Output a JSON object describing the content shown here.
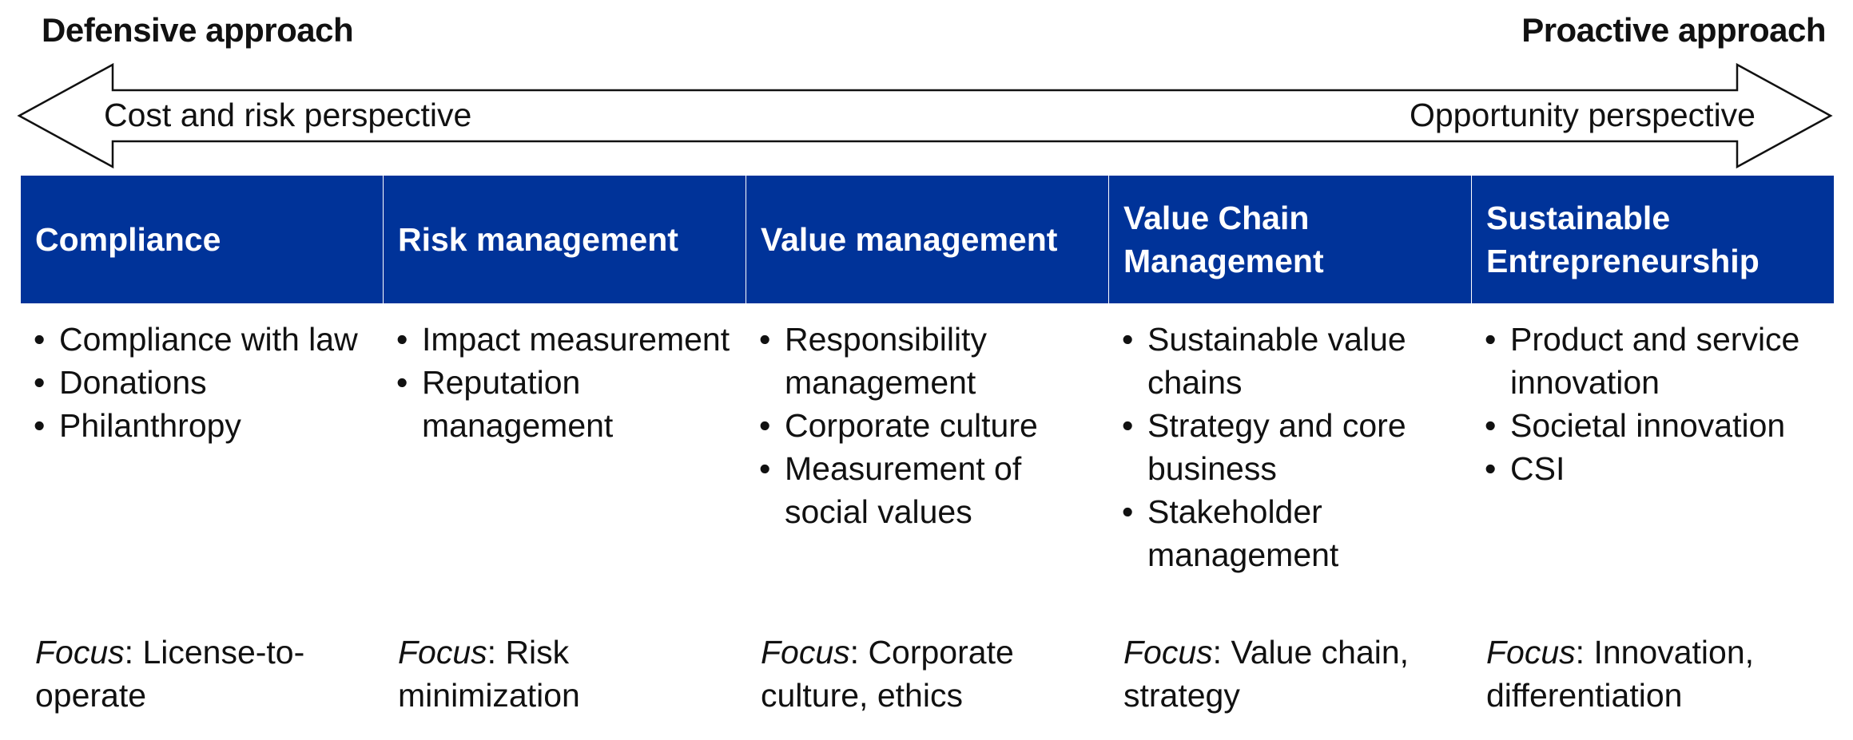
{
  "ends": {
    "left_title": "Defensive approach",
    "right_title": "Proactive approach"
  },
  "arrow": {
    "left_text": "Cost and risk perspective",
    "right_text": "Opportunity perspective"
  },
  "colors": {
    "header_bg": "#003399",
    "header_text": "#ffffff"
  },
  "columns": [
    {
      "title_lines": [
        "Compliance"
      ],
      "bullets": [
        "Compliance with law",
        "Donations",
        "Philanthropy"
      ],
      "focus_label": "Focus",
      "focus_text": ": License-to-operate"
    },
    {
      "title_lines": [
        "Risk management"
      ],
      "bullets": [
        "Impact measurement",
        "Reputation management"
      ],
      "focus_label": "Focus",
      "focus_text": ": Risk minimization"
    },
    {
      "title_lines": [
        "Value management"
      ],
      "bullets": [
        "Responsibility management",
        "Corporate culture",
        "Measurement of social values"
      ],
      "focus_label": "Focus",
      "focus_text": ": Corporate culture, ethics"
    },
    {
      "title_lines": [
        "Value Chain",
        "Management"
      ],
      "bullets": [
        "Sustainable value chains",
        "Strategy and core business",
        "Stakeholder management"
      ],
      "focus_label": "Focus",
      "focus_text": ": Value chain, strategy"
    },
    {
      "title_lines": [
        "Sustainable",
        "Entrepreneurship"
      ],
      "bullets": [
        "Product and service innovation",
        "Societal innovation",
        "CSI"
      ],
      "focus_label": "Focus",
      "focus_text": ": Innovation, differentiation"
    }
  ]
}
